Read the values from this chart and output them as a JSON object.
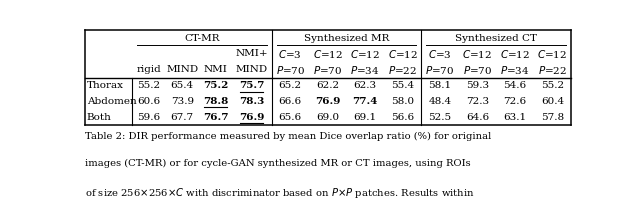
{
  "col_group_labels": [
    "CT-MR",
    "Synthesized MR",
    "Synthesized CT"
  ],
  "subheader1": [
    "",
    "",
    "",
    "NMI+",
    "C=3",
    "C=12",
    "C=12",
    "C=12",
    "C=3",
    "C=12",
    "C=12",
    "C=12"
  ],
  "subheader2": [
    "",
    "rigid",
    "MIND",
    "NMI",
    "MIND",
    "P=70",
    "P=70",
    "P=34",
    "P=22",
    "P=70",
    "P=70",
    "P=34",
    "P=22"
  ],
  "rows": [
    {
      "label": "Thorax",
      "values": [
        "55.2",
        "65.4",
        "75.2",
        "75.7",
        "65.2",
        "62.2",
        "62.3",
        "55.4",
        "58.1",
        "59.3",
        "54.6",
        "55.2"
      ],
      "bold": [
        false,
        false,
        true,
        true,
        false,
        false,
        false,
        false,
        false,
        false,
        false,
        false
      ],
      "underline": [
        false,
        false,
        false,
        true,
        false,
        false,
        false,
        false,
        false,
        false,
        false,
        false
      ]
    },
    {
      "label": "Abdomen",
      "values": [
        "60.6",
        "73.9",
        "78.8",
        "78.3",
        "66.6",
        "76.9",
        "77.4",
        "58.0",
        "48.4",
        "72.3",
        "72.6",
        "60.4"
      ],
      "bold": [
        false,
        false,
        true,
        true,
        false,
        true,
        true,
        false,
        false,
        false,
        false,
        false
      ],
      "underline": [
        false,
        false,
        true,
        false,
        false,
        false,
        false,
        false,
        false,
        false,
        false,
        false
      ]
    },
    {
      "label": "Both",
      "values": [
        "59.6",
        "67.7",
        "76.7",
        "76.9",
        "65.6",
        "69.0",
        "69.1",
        "56.6",
        "52.5",
        "64.6",
        "63.1",
        "57.8"
      ],
      "bold": [
        false,
        false,
        true,
        true,
        false,
        false,
        false,
        false,
        false,
        false,
        false,
        false
      ],
      "underline": [
        false,
        false,
        false,
        true,
        false,
        false,
        false,
        false,
        false,
        false,
        false,
        false
      ]
    }
  ],
  "figsize": [
    6.4,
    2.02
  ],
  "dpi": 100,
  "font_size": 7.5,
  "caption_font_size": 7.2
}
